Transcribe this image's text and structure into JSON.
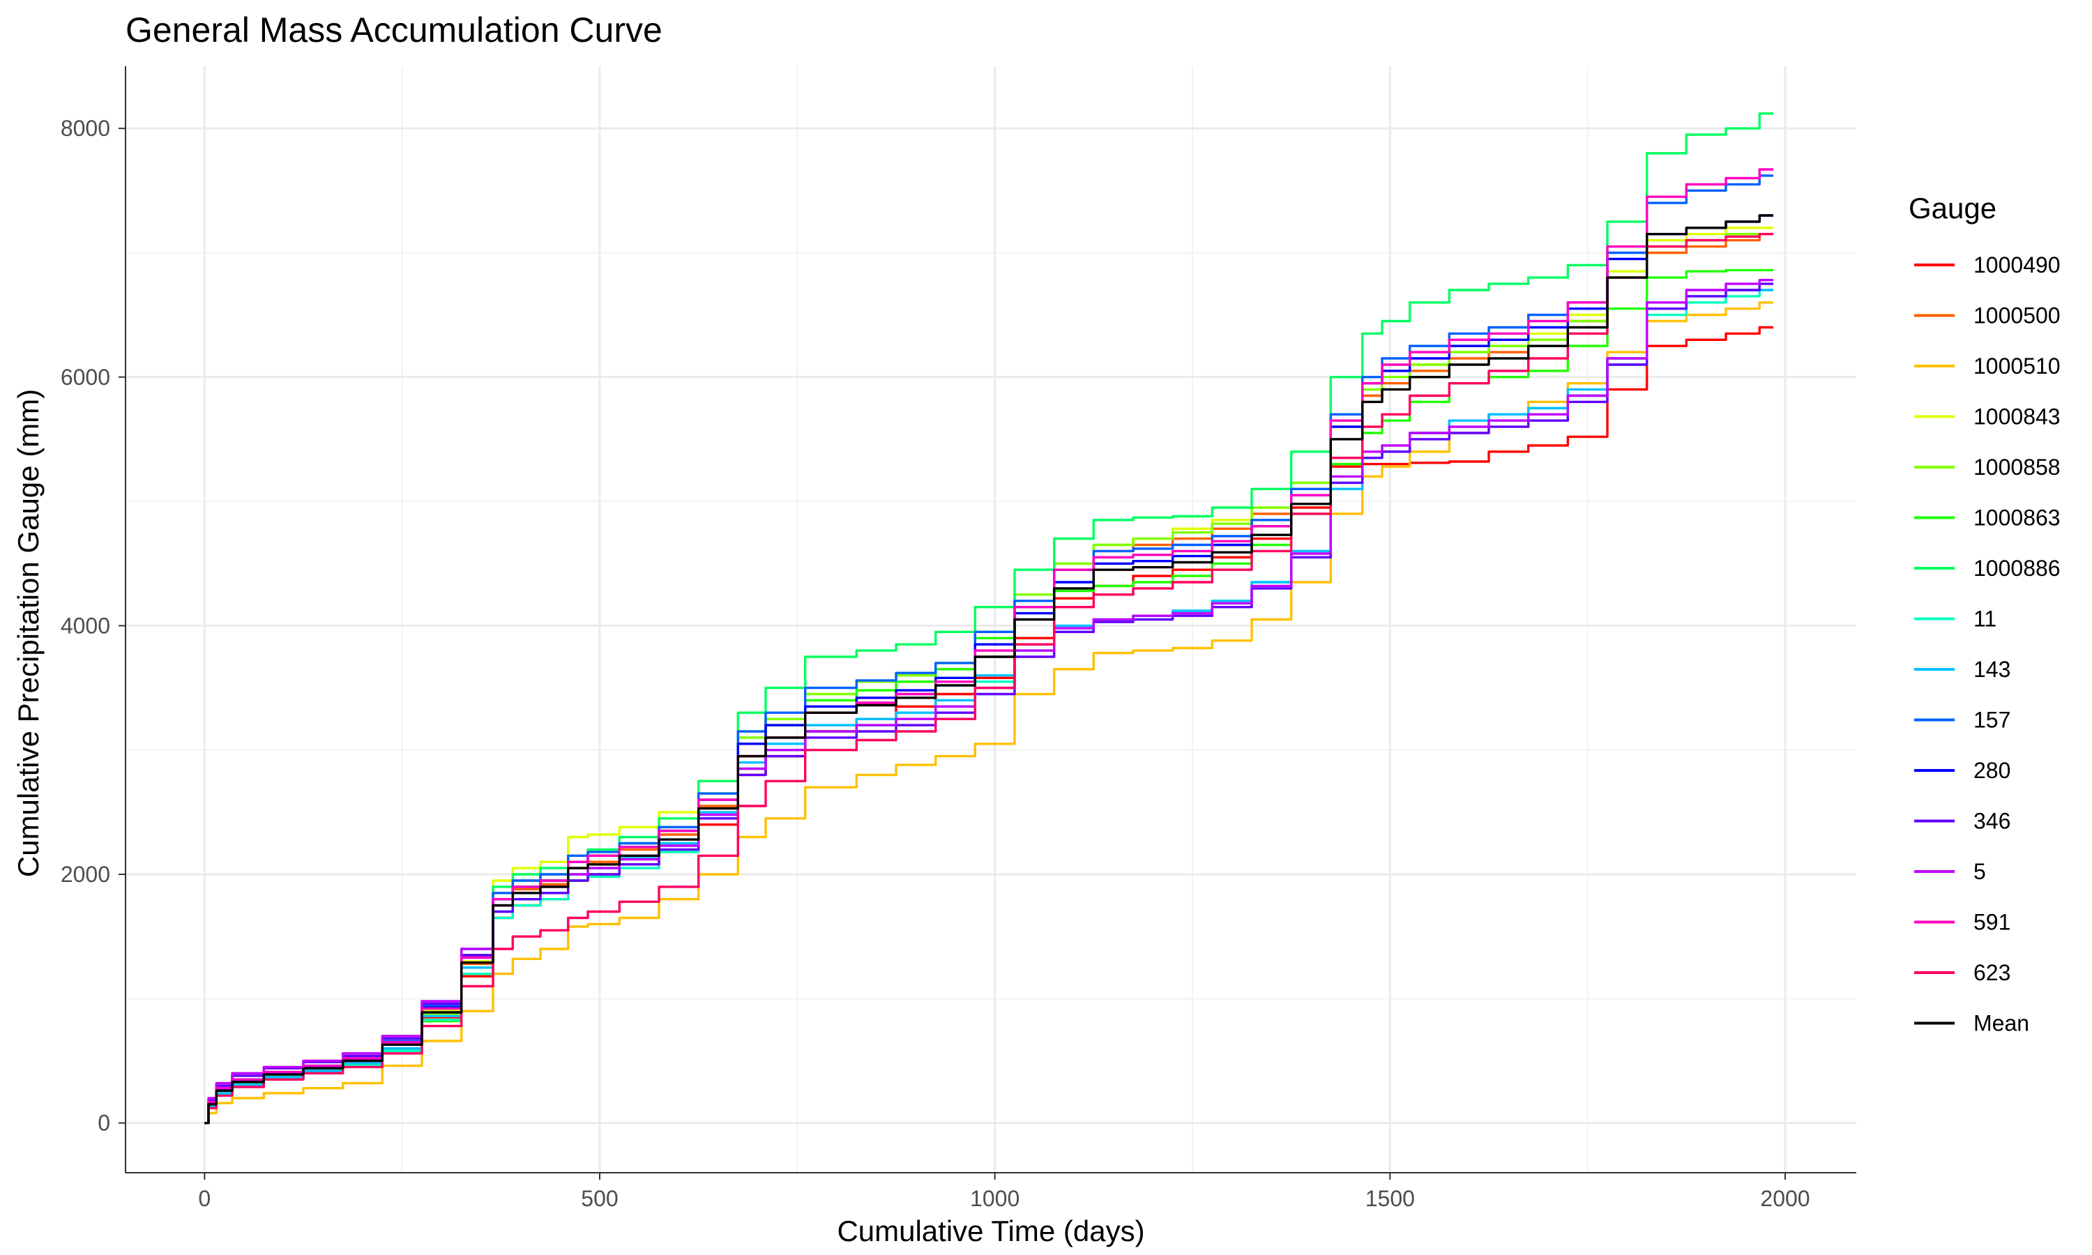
{
  "chart_data": {
    "type": "line",
    "title": "General Mass Accumulation Curve",
    "xlabel": "Cumulative Time (days)",
    "ylabel": "Cumulative Precipitation Gauge (mm)",
    "xlim": [
      -100,
      2090
    ],
    "ylim": [
      -400,
      8500
    ],
    "xticks": [
      0,
      500,
      1000,
      1500,
      2000
    ],
    "yticks": [
      0,
      2000,
      4000,
      6000,
      8000
    ],
    "grid": true,
    "legend": {
      "title": "Gauge",
      "position": "right"
    },
    "x": [
      0,
      10,
      20,
      50,
      100,
      150,
      200,
      250,
      300,
      350,
      380,
      400,
      450,
      470,
      500,
      550,
      600,
      650,
      700,
      720,
      800,
      850,
      900,
      950,
      1000,
      1050,
      1100,
      1150,
      1200,
      1250,
      1300,
      1350,
      1400,
      1450,
      1480,
      1500,
      1550,
      1600,
      1650,
      1700,
      1750,
      1800,
      1850,
      1900,
      1950,
      1985
    ],
    "series": [
      {
        "name": "1000490",
        "color": "#FF0000",
        "values": [
          0,
          120,
          230,
          300,
          360,
          420,
          480,
          600,
          850,
          1180,
          1650,
          1750,
          1800,
          1950,
          2000,
          2080,
          2180,
          2400,
          2800,
          2950,
          3150,
          3250,
          3350,
          3450,
          3580,
          3900,
          4220,
          4320,
          4400,
          4450,
          4550,
          4700,
          4950,
          5280,
          5300,
          5300,
          5310,
          5320,
          5400,
          5450,
          5520,
          5900,
          6250,
          6300,
          6350,
          6400
        ]
      },
      {
        "name": "1000500",
        "color": "#FF6000",
        "values": [
          0,
          150,
          260,
          330,
          390,
          440,
          500,
          640,
          900,
          1280,
          1750,
          1880,
          1920,
          2050,
          2100,
          2200,
          2320,
          2550,
          2950,
          3100,
          3300,
          3380,
          3450,
          3550,
          3750,
          4150,
          4450,
          4600,
          4650,
          4700,
          4780,
          4900,
          5150,
          5600,
          5850,
          5950,
          6050,
          6150,
          6200,
          6300,
          6450,
          6800,
          7000,
          7050,
          7100,
          7150
        ]
      },
      {
        "name": "1000510",
        "color": "#FFC000",
        "values": [
          0,
          80,
          160,
          200,
          240,
          280,
          320,
          460,
          660,
          900,
          1200,
          1320,
          1400,
          1580,
          1600,
          1650,
          1800,
          2000,
          2300,
          2450,
          2700,
          2800,
          2880,
          2950,
          3050,
          3450,
          3650,
          3780,
          3800,
          3820,
          3880,
          4050,
          4350,
          4900,
          5200,
          5280,
          5400,
          5550,
          5700,
          5800,
          5950,
          6200,
          6450,
          6500,
          6550,
          6600
        ]
      },
      {
        "name": "1000843",
        "color": "#E0FF00",
        "values": [
          0,
          160,
          270,
          340,
          400,
          450,
          510,
          640,
          900,
          1300,
          1950,
          2050,
          2100,
          2300,
          2320,
          2380,
          2500,
          2750,
          3050,
          3200,
          3400,
          3480,
          3550,
          3650,
          3950,
          4250,
          4500,
          4650,
          4700,
          4780,
          4850,
          4950,
          5150,
          5650,
          5900,
          6000,
          6100,
          6200,
          6250,
          6350,
          6500,
          6850,
          7100,
          7150,
          7200,
          7200
        ]
      },
      {
        "name": "1000858",
        "color": "#80FF00",
        "values": [
          0,
          150,
          250,
          320,
          380,
          430,
          480,
          600,
          880,
          1250,
          1850,
          1950,
          2000,
          2150,
          2180,
          2250,
          2380,
          2650,
          3100,
          3250,
          3450,
          3550,
          3600,
          3700,
          3950,
          4250,
          4500,
          4650,
          4700,
          4750,
          4820,
          4950,
          5150,
          5650,
          5900,
          6000,
          6100,
          6200,
          6250,
          6300,
          6450,
          6800,
          7050,
          7100,
          7150,
          7150
        ]
      },
      {
        "name": "1000863",
        "color": "#20FF00",
        "values": [
          0,
          140,
          240,
          310,
          370,
          420,
          470,
          580,
          820,
          1200,
          1800,
          1900,
          1950,
          2100,
          2150,
          2220,
          2350,
          2600,
          3050,
          3200,
          3400,
          3480,
          3550,
          3650,
          3900,
          4150,
          4280,
          4320,
          4350,
          4400,
          4500,
          4650,
          4900,
          5300,
          5550,
          5650,
          5800,
          5950,
          6000,
          6050,
          6250,
          6550,
          6800,
          6850,
          6860,
          6860
        ]
      },
      {
        "name": "1000886",
        "color": "#00FF60",
        "values": [
          0,
          160,
          270,
          340,
          400,
          460,
          520,
          650,
          920,
          1350,
          1900,
          2000,
          2050,
          2150,
          2200,
          2300,
          2450,
          2750,
          3300,
          3500,
          3750,
          3800,
          3850,
          3950,
          4150,
          4450,
          4700,
          4850,
          4870,
          4880,
          4950,
          5100,
          5400,
          6000,
          6350,
          6450,
          6600,
          6700,
          6750,
          6800,
          6900,
          7250,
          7800,
          7950,
          8000,
          8120
        ]
      },
      {
        "name": "11",
        "color": "#00FFC0",
        "values": [
          0,
          130,
          230,
          300,
          360,
          410,
          460,
          580,
          830,
          1200,
          1650,
          1750,
          1800,
          1950,
          1980,
          2050,
          2180,
          2450,
          2850,
          3000,
          3150,
          3200,
          3250,
          3350,
          3550,
          3800,
          3950,
          4050,
          4080,
          4120,
          4200,
          4350,
          4600,
          5100,
          5350,
          5400,
          5550,
          5650,
          5700,
          5750,
          5850,
          6100,
          6500,
          6600,
          6650,
          6700
        ]
      },
      {
        "name": "143",
        "color": "#00C0FF",
        "values": [
          0,
          140,
          240,
          310,
          370,
          420,
          480,
          600,
          860,
          1250,
          1700,
          1800,
          1850,
          2000,
          2050,
          2130,
          2250,
          2500,
          2900,
          3050,
          3200,
          3250,
          3300,
          3400,
          3600,
          3850,
          4000,
          4050,
          4080,
          4120,
          4200,
          4350,
          4600,
          5100,
          5350,
          5400,
          5550,
          5650,
          5700,
          5750,
          5900,
          6150,
          6550,
          6650,
          6700,
          6700
        ]
      },
      {
        "name": "157",
        "color": "#0060FF",
        "values": [
          0,
          170,
          280,
          350,
          410,
          460,
          520,
          660,
          950,
          1400,
          1850,
          1950,
          2000,
          2150,
          2180,
          2250,
          2380,
          2650,
          3150,
          3300,
          3500,
          3560,
          3620,
          3700,
          3950,
          4200,
          4450,
          4600,
          4620,
          4650,
          4720,
          4850,
          5100,
          5700,
          6000,
          6150,
          6250,
          6350,
          6400,
          6500,
          6600,
          7000,
          7400,
          7500,
          7550,
          7620
        ]
      },
      {
        "name": "280",
        "color": "#0000FF",
        "values": [
          0,
          160,
          270,
          340,
          400,
          450,
          510,
          650,
          930,
          1350,
          1800,
          1900,
          1950,
          2100,
          2150,
          2220,
          2350,
          2600,
          3050,
          3200,
          3350,
          3420,
          3480,
          3580,
          3850,
          4100,
          4350,
          4500,
          4520,
          4560,
          4650,
          4800,
          5050,
          5600,
          5950,
          6050,
          6150,
          6250,
          6300,
          6400,
          6550,
          6950,
          7150,
          7200,
          7250,
          7300
        ]
      },
      {
        "name": "346",
        "color": "#6000FF",
        "values": [
          0,
          180,
          300,
          380,
          440,
          490,
          540,
          680,
          960,
          1350,
          1700,
          1800,
          1850,
          1950,
          2000,
          2080,
          2200,
          2450,
          2800,
          2950,
          3100,
          3150,
          3200,
          3300,
          3450,
          3750,
          3950,
          4030,
          4050,
          4080,
          4150,
          4300,
          4550,
          5150,
          5350,
          5400,
          5500,
          5550,
          5600,
          5650,
          5800,
          6100,
          6550,
          6650,
          6700,
          6750
        ]
      },
      {
        "name": "5",
        "color": "#C000FF",
        "values": [
          0,
          200,
          320,
          400,
          450,
          500,
          560,
          700,
          980,
          1400,
          1750,
          1850,
          1900,
          2000,
          2050,
          2120,
          2230,
          2480,
          2850,
          3000,
          3150,
          3200,
          3250,
          3350,
          3500,
          3800,
          3980,
          4050,
          4080,
          4100,
          4180,
          4320,
          4580,
          5200,
          5400,
          5450,
          5550,
          5600,
          5650,
          5700,
          5850,
          6150,
          6600,
          6700,
          6750,
          6780
        ]
      },
      {
        "name": "591",
        "color": "#FF00C0",
        "values": [
          0,
          170,
          280,
          350,
          410,
          460,
          520,
          650,
          920,
          1330,
          1800,
          1900,
          1950,
          2100,
          2150,
          2220,
          2350,
          2600,
          2950,
          3100,
          3300,
          3380,
          3450,
          3550,
          3800,
          4150,
          4450,
          4550,
          4570,
          4600,
          4680,
          4800,
          5050,
          5650,
          5950,
          6100,
          6200,
          6300,
          6350,
          6450,
          6600,
          7050,
          7450,
          7550,
          7600,
          7670
        ]
      },
      {
        "name": "623",
        "color": "#FF0060",
        "values": [
          0,
          120,
          220,
          290,
          350,
          400,
          450,
          560,
          780,
          1100,
          1400,
          1500,
          1550,
          1650,
          1700,
          1780,
          1900,
          2150,
          2550,
          2750,
          3000,
          3080,
          3150,
          3250,
          3500,
          3850,
          4150,
          4250,
          4300,
          4350,
          4450,
          4600,
          4900,
          5350,
          5600,
          5700,
          5850,
          5950,
          6050,
          6150,
          6350,
          6800,
          7050,
          7100,
          7130,
          7150
        ]
      },
      {
        "name": "Mean",
        "color": "#000000",
        "values": [
          0,
          150,
          260,
          330,
          390,
          440,
          500,
          630,
          890,
          1290,
          1750,
          1850,
          1900,
          2050,
          2080,
          2150,
          2280,
          2530,
          2950,
          3100,
          3300,
          3360,
          3420,
          3520,
          3750,
          4050,
          4300,
          4450,
          4470,
          4510,
          4590,
          4730,
          4980,
          5500,
          5800,
          5900,
          6000,
          6100,
          6150,
          6250,
          6400,
          6800,
          7150,
          7200,
          7250,
          7300
        ]
      }
    ]
  }
}
